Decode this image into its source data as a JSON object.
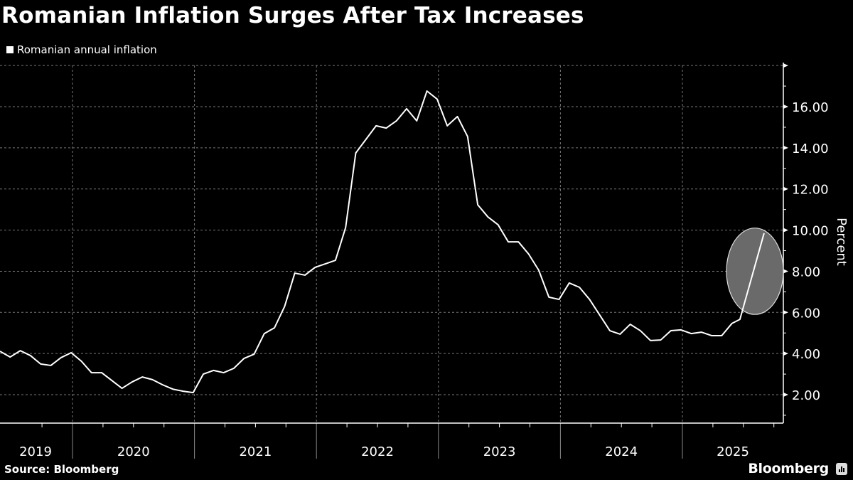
{
  "title": "Romanian Inflation Surges After Tax Increases",
  "legend": [
    {
      "label": "Romanian annual inflation",
      "color": "#ffffff"
    }
  ],
  "source": "Source: Bloomberg",
  "brand": "Bloomberg",
  "chart_data": {
    "type": "line",
    "title": "Romanian Inflation Surges After Tax Increases",
    "xlabel": "",
    "ylabel": "Percent",
    "ylim": [
      1.5,
      18.2
    ],
    "yticks": [
      2,
      4,
      6,
      8,
      10,
      12,
      14,
      16
    ],
    "ytick_labels": [
      "2.00",
      "4.00",
      "6.00",
      "8.00",
      "10.00",
      "12.00",
      "14.00",
      "16.00"
    ],
    "y_axis_side": "right",
    "grid": true,
    "legend_position": "top-left",
    "x_categories": [
      "2019",
      "2020",
      "2021",
      "2022",
      "2023",
      "2024",
      "2025"
    ],
    "x_start": "2019-06",
    "frequency": "monthly",
    "series": [
      {
        "name": "Romanian annual inflation",
        "color": "#ffffff",
        "values": [
          4.11,
          3.83,
          4.14,
          3.9,
          3.49,
          3.42,
          3.8,
          4.04,
          3.63,
          3.07,
          3.07,
          2.69,
          2.31,
          2.62,
          2.86,
          2.73,
          2.48,
          2.27,
          2.17,
          2.1,
          3.0,
          3.18,
          3.07,
          3.28,
          3.76,
          3.97,
          4.97,
          5.25,
          6.29,
          7.91,
          7.81,
          8.19,
          8.36,
          8.53,
          10.12,
          13.75,
          14.41,
          15.07,
          14.96,
          15.31,
          15.9,
          15.31,
          16.76,
          16.37,
          15.07,
          15.52,
          14.55,
          11.23,
          10.64,
          10.26,
          9.43,
          9.43,
          8.84,
          8.05,
          6.74,
          6.63,
          7.43,
          7.22,
          6.63,
          5.87,
          5.11,
          4.94,
          5.42,
          5.11,
          4.63,
          4.66,
          5.11,
          5.15,
          4.97,
          5.04,
          4.87,
          4.87,
          5.46,
          5.66,
          9.85
        ]
      }
    ],
    "annotations": [
      {
        "type": "ellipse-highlight",
        "around": "last data point jump",
        "y_range": [
          5.9,
          10.1
        ],
        "color": "#6a6a6a"
      }
    ]
  }
}
